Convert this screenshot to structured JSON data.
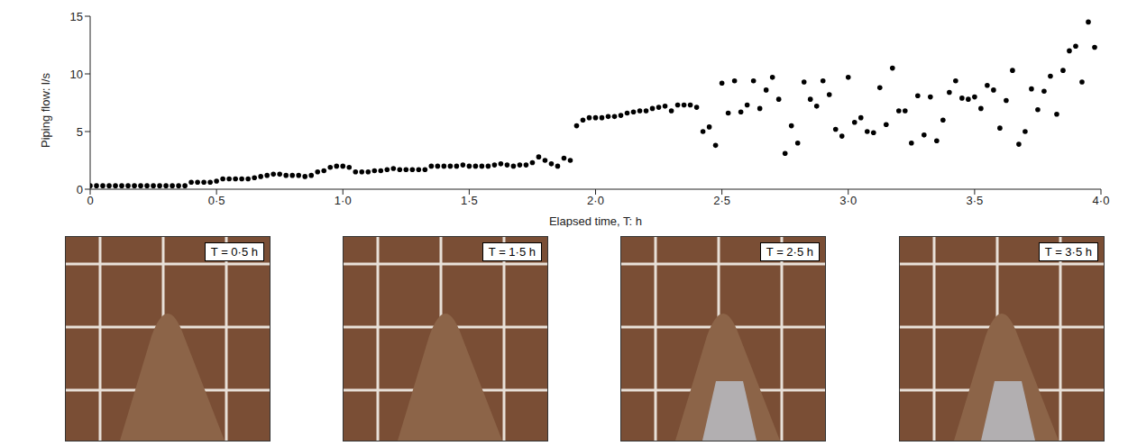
{
  "chart_data": {
    "type": "scatter",
    "x_label": "Elapsed time, T: h",
    "y_label": "Piping flow: l/s",
    "xlim": [
      0,
      4
    ],
    "xticks": [
      0,
      {
        "value": 0.5,
        "label": "0·5"
      },
      {
        "value": 1,
        "label": "1·0"
      },
      {
        "value": 1.5,
        "label": "1·5"
      },
      {
        "value": 2,
        "label": "2·0"
      },
      {
        "value": 2.5,
        "label": "2·5"
      },
      {
        "value": 3,
        "label": "3·0"
      },
      {
        "value": 3.5,
        "label": "3·5"
      },
      {
        "value": 4,
        "label": "4·0"
      }
    ],
    "ylim": [
      0,
      15
    ],
    "yticks": [
      0,
      5,
      10,
      15
    ],
    "grid": false,
    "color": "#000000",
    "marker": "circle",
    "x": [
      0,
      0.025,
      0.05,
      0.075,
      0.1,
      0.125,
      0.15,
      0.175,
      0.2,
      0.225,
      0.25,
      0.275,
      0.3,
      0.325,
      0.35,
      0.375,
      0.4,
      0.425,
      0.45,
      0.475,
      0.5,
      0.525,
      0.55,
      0.575,
      0.6,
      0.625,
      0.65,
      0.675,
      0.7,
      0.725,
      0.75,
      0.775,
      0.8,
      0.825,
      0.85,
      0.875,
      0.9,
      0.925,
      0.95,
      0.975,
      1.0,
      1.025,
      1.05,
      1.075,
      1.1,
      1.125,
      1.15,
      1.175,
      1.2,
      1.225,
      1.25,
      1.275,
      1.3,
      1.325,
      1.35,
      1.375,
      1.4,
      1.425,
      1.45,
      1.475,
      1.5,
      1.525,
      1.55,
      1.575,
      1.6,
      1.625,
      1.65,
      1.675,
      1.7,
      1.725,
      1.75,
      1.775,
      1.8,
      1.825,
      1.85,
      1.875,
      1.9,
      1.925,
      1.95,
      1.975,
      2.0,
      2.025,
      2.05,
      2.075,
      2.1,
      2.125,
      2.15,
      2.175,
      2.2,
      2.225,
      2.25,
      2.275,
      2.3,
      2.325,
      2.35,
      2.375,
      2.4,
      2.425,
      2.45,
      2.475,
      2.5,
      2.525,
      2.55,
      2.575,
      2.6,
      2.625,
      2.65,
      2.675,
      2.7,
      2.725,
      2.75,
      2.775,
      2.8,
      2.825,
      2.85,
      2.875,
      2.9,
      2.925,
      2.95,
      2.975,
      3.0,
      3.025,
      3.05,
      3.075,
      3.1,
      3.125,
      3.15,
      3.175,
      3.2,
      3.225,
      3.25,
      3.275,
      3.3,
      3.325,
      3.35,
      3.375,
      3.4,
      3.425,
      3.45,
      3.475,
      3.5,
      3.525,
      3.55,
      3.575,
      3.6,
      3.625,
      3.65,
      3.675,
      3.7,
      3.725,
      3.75,
      3.775,
      3.8,
      3.825,
      3.85,
      3.875,
      3.9,
      3.925,
      3.95,
      3.975
    ],
    "values": [
      0.3,
      0.3,
      0.3,
      0.3,
      0.3,
      0.3,
      0.3,
      0.3,
      0.3,
      0.3,
      0.3,
      0.3,
      0.3,
      0.3,
      0.3,
      0.3,
      0.6,
      0.6,
      0.6,
      0.6,
      0.7,
      0.9,
      0.9,
      0.9,
      0.9,
      0.9,
      1.0,
      1.1,
      1.2,
      1.3,
      1.3,
      1.2,
      1.2,
      1.2,
      1.1,
      1.2,
      1.5,
      1.6,
      1.9,
      2.0,
      2.0,
      1.9,
      1.5,
      1.5,
      1.5,
      1.6,
      1.6,
      1.7,
      1.8,
      1.7,
      1.7,
      1.7,
      1.7,
      1.7,
      2.0,
      2.0,
      2.0,
      2.0,
      2.0,
      2.1,
      2.0,
      2.0,
      2.0,
      2.0,
      2.1,
      2.2,
      2.1,
      2.0,
      2.1,
      2.1,
      2.3,
      2.8,
      2.5,
      2.2,
      2.0,
      2.7,
      2.5,
      5.5,
      6.0,
      6.2,
      6.2,
      6.2,
      6.3,
      6.3,
      6.4,
      6.6,
      6.7,
      6.8,
      6.8,
      7.0,
      7.1,
      7.2,
      6.8,
      7.3,
      7.3,
      7.3,
      7.1,
      5.0,
      5.4,
      3.8,
      9.2,
      6.6,
      9.4,
      6.7,
      7.3,
      9.4,
      7.0,
      8.6,
      9.7,
      7.8,
      3.1,
      5.5,
      4.0,
      9.3,
      7.8,
      7.2,
      9.4,
      8.2,
      5.2,
      4.6,
      9.7,
      5.8,
      6.2,
      5.0,
      4.9,
      8.8,
      5.6,
      10.5,
      6.8,
      6.8,
      4.0,
      8.1,
      4.7,
      8.0,
      4.2,
      6.0,
      8.4,
      9.4,
      7.9,
      7.8,
      8.0,
      7.0,
      9.0,
      8.6,
      5.3,
      7.7,
      10.3,
      3.9,
      5.0,
      8.7,
      6.9,
      8.5,
      9.8,
      6.5,
      10.3,
      12.0,
      12.4,
      9.3,
      14.5,
      12.3
    ]
  },
  "images": [
    {
      "label": "T = 0·5 h"
    },
    {
      "label": "T = 1·5 h"
    },
    {
      "label": "T = 2·5 h"
    },
    {
      "label": "T = 3·5 h"
    }
  ]
}
